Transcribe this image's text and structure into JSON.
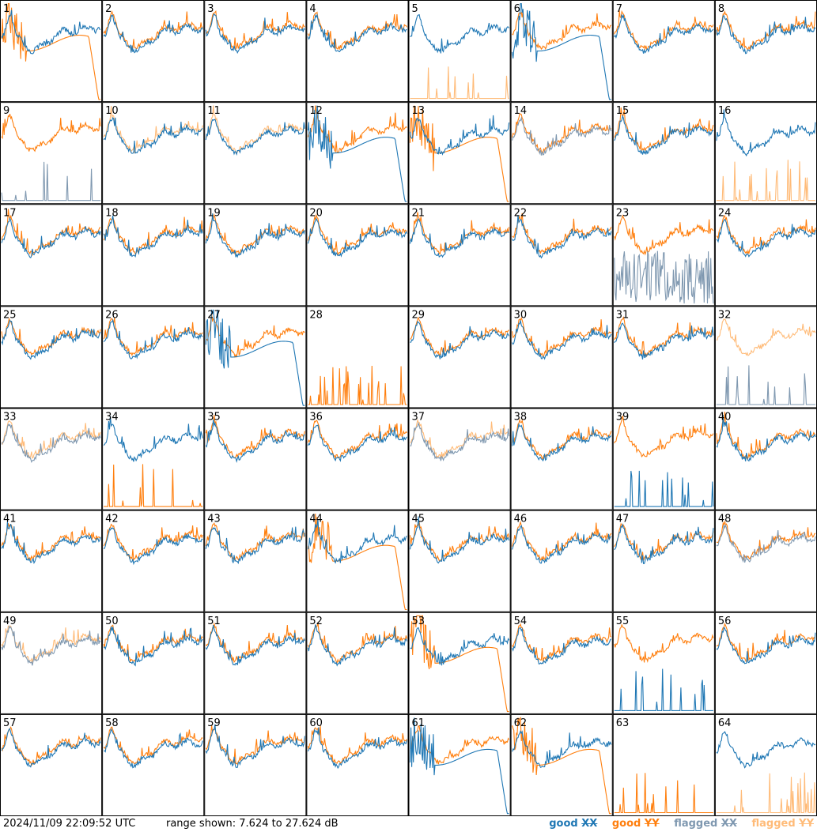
{
  "chart_data": {
    "type": "line",
    "layout": "small-multiples-8x8",
    "colors": {
      "good_xx": "#1f77b4",
      "good_yy": "#ff7f0e",
      "flagged_xx": "#7f98b0",
      "flagged_yy": "#ffbb78"
    },
    "ylim": [
      7.624,
      27.624
    ],
    "panels": [
      {
        "label": "1",
        "profile": "normal",
        "xx": "good",
        "yy": "good",
        "yy_shape": "drop"
      },
      {
        "label": "2",
        "profile": "normal",
        "xx": "good",
        "yy": "good"
      },
      {
        "label": "3",
        "profile": "normal",
        "xx": "good",
        "yy": "good"
      },
      {
        "label": "4",
        "profile": "normal",
        "xx": "good",
        "yy": "good"
      },
      {
        "label": "5",
        "profile": "normal",
        "xx": "good",
        "yy": "flagged",
        "yy_shape": "dead"
      },
      {
        "label": "6",
        "profile": "normal",
        "xx": "good",
        "yy": "good",
        "xx_shape": "drop"
      },
      {
        "label": "7",
        "profile": "normal",
        "xx": "good",
        "yy": "good"
      },
      {
        "label": "8",
        "profile": "normal",
        "xx": "good",
        "yy": "good"
      },
      {
        "label": "9",
        "profile": "normal",
        "xx": "flagged",
        "yy": "good",
        "xx_shape": "dead"
      },
      {
        "label": "10",
        "profile": "normal",
        "xx": "good",
        "yy": "flagged"
      },
      {
        "label": "11",
        "profile": "normal",
        "xx": "good",
        "yy": "flagged"
      },
      {
        "label": "12",
        "profile": "normal",
        "xx": "good",
        "yy": "good",
        "xx_shape": "drop"
      },
      {
        "label": "13",
        "profile": "normal",
        "xx": "good",
        "yy": "good",
        "yy_shape": "drop"
      },
      {
        "label": "14",
        "profile": "normal",
        "xx": "flagged",
        "yy": "good"
      },
      {
        "label": "15",
        "profile": "normal",
        "xx": "good",
        "yy": "good"
      },
      {
        "label": "16",
        "profile": "normal",
        "xx": "good",
        "yy": "flagged",
        "yy_shape": "dead"
      },
      {
        "label": "17",
        "profile": "normal",
        "xx": "good",
        "yy": "good"
      },
      {
        "label": "18",
        "profile": "normal",
        "xx": "good",
        "yy": "good"
      },
      {
        "label": "19",
        "profile": "normal",
        "xx": "good",
        "yy": "good"
      },
      {
        "label": "20",
        "profile": "normal",
        "xx": "good",
        "yy": "good"
      },
      {
        "label": "21",
        "profile": "normal",
        "xx": "good",
        "yy": "good"
      },
      {
        "label": "22",
        "profile": "normal",
        "xx": "good",
        "yy": "good"
      },
      {
        "label": "23",
        "profile": "normal",
        "xx": "flagged",
        "yy": "good",
        "xx_shape": "noisy"
      },
      {
        "label": "24",
        "profile": "normal",
        "xx": "good",
        "yy": "good"
      },
      {
        "label": "25",
        "profile": "normal",
        "xx": "good",
        "yy": "good"
      },
      {
        "label": "26",
        "profile": "normal",
        "xx": "good",
        "yy": "good"
      },
      {
        "label": "27",
        "profile": "normal",
        "xx": "good",
        "yy": "good",
        "xx_shape": "drop"
      },
      {
        "label": "28",
        "profile": "normal",
        "xx": "none",
        "yy": "good",
        "yy_shape": "dead"
      },
      {
        "label": "29",
        "profile": "normal",
        "xx": "good",
        "yy": "good"
      },
      {
        "label": "30",
        "profile": "normal",
        "xx": "good",
        "yy": "good"
      },
      {
        "label": "31",
        "profile": "normal",
        "xx": "good",
        "yy": "good"
      },
      {
        "label": "32",
        "profile": "normal",
        "xx": "flagged",
        "yy": "flagged",
        "xx_shape": "dead"
      },
      {
        "label": "33",
        "profile": "normal",
        "xx": "flagged",
        "yy": "flagged"
      },
      {
        "label": "34",
        "profile": "normal",
        "xx": "good",
        "yy": "good",
        "yy_shape": "dead"
      },
      {
        "label": "35",
        "profile": "normal",
        "xx": "good",
        "yy": "good"
      },
      {
        "label": "36",
        "profile": "normal",
        "xx": "good",
        "yy": "good"
      },
      {
        "label": "37",
        "profile": "normal",
        "xx": "flagged",
        "yy": "flagged"
      },
      {
        "label": "38",
        "profile": "normal",
        "xx": "good",
        "yy": "good"
      },
      {
        "label": "39",
        "profile": "normal",
        "xx": "good",
        "yy": "good",
        "xx_shape": "dead"
      },
      {
        "label": "40",
        "profile": "normal",
        "xx": "good",
        "yy": "good"
      },
      {
        "label": "41",
        "profile": "normal",
        "xx": "good",
        "yy": "good"
      },
      {
        "label": "42",
        "profile": "normal",
        "xx": "good",
        "yy": "good"
      },
      {
        "label": "43",
        "profile": "normal",
        "xx": "good",
        "yy": "good"
      },
      {
        "label": "44",
        "profile": "normal",
        "xx": "good",
        "yy": "good",
        "yy_shape": "drop"
      },
      {
        "label": "45",
        "profile": "normal",
        "xx": "good",
        "yy": "good"
      },
      {
        "label": "46",
        "profile": "normal",
        "xx": "good",
        "yy": "good"
      },
      {
        "label": "47",
        "profile": "normal",
        "xx": "good",
        "yy": "good"
      },
      {
        "label": "48",
        "profile": "normal",
        "xx": "flagged",
        "yy": "good"
      },
      {
        "label": "49",
        "profile": "normal",
        "xx": "flagged",
        "yy": "flagged"
      },
      {
        "label": "50",
        "profile": "normal",
        "xx": "good",
        "yy": "good"
      },
      {
        "label": "51",
        "profile": "normal",
        "xx": "good",
        "yy": "good"
      },
      {
        "label": "52",
        "profile": "normal",
        "xx": "good",
        "yy": "good"
      },
      {
        "label": "53",
        "profile": "normal",
        "xx": "good",
        "yy": "good",
        "yy_shape": "drop"
      },
      {
        "label": "54",
        "profile": "normal",
        "xx": "good",
        "yy": "good"
      },
      {
        "label": "55",
        "profile": "normal",
        "xx": "good",
        "yy": "good",
        "xx_shape": "dead"
      },
      {
        "label": "56",
        "profile": "normal",
        "xx": "good",
        "yy": "good"
      },
      {
        "label": "57",
        "profile": "normal",
        "xx": "good",
        "yy": "good"
      },
      {
        "label": "58",
        "profile": "normal",
        "xx": "good",
        "yy": "good"
      },
      {
        "label": "59",
        "profile": "normal",
        "xx": "good",
        "yy": "good"
      },
      {
        "label": "60",
        "profile": "normal",
        "xx": "good",
        "yy": "good"
      },
      {
        "label": "61",
        "profile": "normal",
        "xx": "good",
        "yy": "good",
        "xx_shape": "drop"
      },
      {
        "label": "62",
        "profile": "normal",
        "xx": "good",
        "yy": "good",
        "yy_shape": "drop"
      },
      {
        "label": "63",
        "profile": "normal",
        "xx": "none",
        "yy": "good",
        "yy_shape": "dead"
      },
      {
        "label": "64",
        "profile": "normal",
        "xx": "good",
        "yy": "flagged",
        "yy_shape": "dead"
      }
    ]
  },
  "footer": {
    "timestamp": "2024/11/09 22:09:52 UTC",
    "range_text": "range shown: 7.624 to 27.624 dB",
    "legend": {
      "good_word": "good",
      "flagged_word": "flagged",
      "xx": "XX",
      "yy": "YY"
    }
  }
}
